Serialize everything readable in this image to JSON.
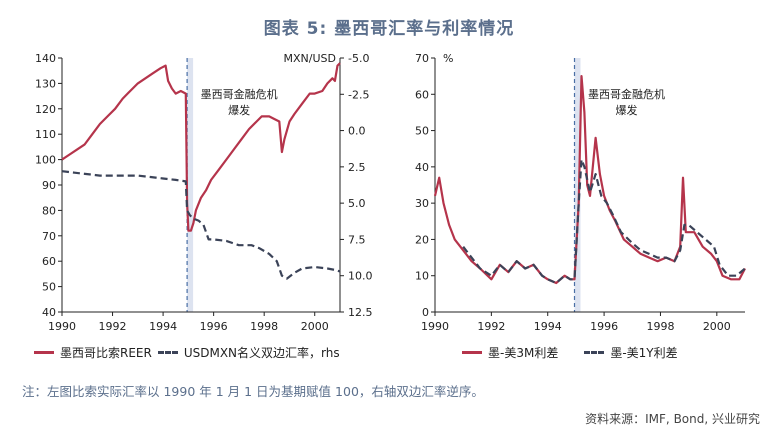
{
  "title": "图表 5: 墨西哥汇率与利率情况",
  "note": "注：左图比索实际汇率以 1990 年 1 月 1 日为基期赋值 100，右轴双边汇率逆序。",
  "source": "资料来源：IMF, Bond, 兴业研究",
  "colors": {
    "red": "#b5344b",
    "navy": "#3b4358",
    "shade": "#dde3f0",
    "vline": "#4a6fa5"
  },
  "chart_data": [
    {
      "type": "line",
      "annotation": "墨西哥金融危机\n爆发",
      "xlim": [
        1990,
        2001
      ],
      "xticks": [
        "1990",
        "1992",
        "1994",
        "1996",
        "1998",
        "2000"
      ],
      "ylim": [
        40,
        140
      ],
      "yticks": [
        "40",
        "50",
        "60",
        "70",
        "80",
        "90",
        "100",
        "110",
        "120",
        "130",
        "140"
      ],
      "y2label": "MXN/USD",
      "y2lim": [
        12.5,
        -5.0
      ],
      "y2ticks": [
        "-5.0",
        "-2.5",
        "0.0",
        "2.5",
        "5.0",
        "7.5",
        "10.0",
        "12.5"
      ],
      "event_x": 1994.95,
      "series": [
        {
          "name": "墨西哥比索REER",
          "axis": "left",
          "style": "solid",
          "x": [
            1990.0,
            1990.3,
            1990.6,
            1990.9,
            1991.2,
            1991.5,
            1991.8,
            1992.1,
            1992.4,
            1992.7,
            1993.0,
            1993.3,
            1993.6,
            1993.9,
            1994.1,
            1994.2,
            1994.35,
            1994.5,
            1994.7,
            1994.9,
            1994.95,
            1995.0,
            1995.1,
            1995.2,
            1995.3,
            1995.5,
            1995.7,
            1995.9,
            1996.2,
            1996.5,
            1996.8,
            1997.1,
            1997.4,
            1997.7,
            1997.9,
            1998.2,
            1998.4,
            1998.6,
            1998.7,
            1998.8,
            1999.0,
            1999.2,
            1999.5,
            1999.8,
            2000.0,
            2000.3,
            2000.5,
            2000.7,
            2000.8,
            2000.9,
            2001.0
          ],
          "values": [
            100,
            102,
            104,
            106,
            110,
            114,
            117,
            120,
            124,
            127,
            130,
            132,
            134,
            136,
            137,
            131,
            128,
            126,
            127,
            126,
            83,
            72,
            72,
            75,
            80,
            85,
            88,
            92,
            96,
            100,
            104,
            108,
            112,
            115,
            117,
            117,
            116,
            115,
            103,
            108,
            115,
            118,
            122,
            126,
            126,
            127,
            130,
            132,
            131,
            137,
            138
          ]
        },
        {
          "name": "USDMXN名义双边汇率，rhs",
          "axis": "right",
          "style": "dashed",
          "x": [
            1990.0,
            1990.5,
            1991.0,
            1991.5,
            1992.0,
            1992.5,
            1993.0,
            1993.5,
            1994.0,
            1994.5,
            1994.9,
            1994.95,
            1995.05,
            1995.15,
            1995.25,
            1995.4,
            1995.6,
            1995.8,
            1996.0,
            1996.5,
            1997.0,
            1997.5,
            1997.8,
            1998.2,
            1998.5,
            1998.7,
            1998.9,
            1999.2,
            1999.5,
            2000.0,
            2000.5,
            2000.8,
            2001.0
          ],
          "values": [
            2.8,
            2.9,
            3.0,
            3.1,
            3.1,
            3.1,
            3.1,
            3.2,
            3.3,
            3.4,
            3.5,
            5.5,
            5.8,
            6.0,
            6.1,
            6.2,
            6.5,
            7.5,
            7.5,
            7.6,
            7.9,
            7.9,
            8.1,
            8.5,
            9.0,
            10.0,
            10.2,
            9.8,
            9.5,
            9.4,
            9.5,
            9.6,
            9.7
          ]
        }
      ]
    },
    {
      "type": "line",
      "annotation": "墨西哥金融危机\n爆发",
      "xlim": [
        1990,
        2001
      ],
      "xticks": [
        "1990",
        "1992",
        "1994",
        "1996",
        "1998",
        "2000"
      ],
      "ylabel": "%",
      "ylim": [
        0,
        70
      ],
      "yticks": [
        "0",
        "10",
        "20",
        "30",
        "40",
        "50",
        "60",
        "70"
      ],
      "event_x": 1994.95,
      "series": [
        {
          "name": "墨-美3M利差",
          "style": "solid",
          "x": [
            1990.0,
            1990.15,
            1990.3,
            1990.5,
            1990.7,
            1991.0,
            1991.3,
            1991.6,
            1992.0,
            1992.3,
            1992.6,
            1992.9,
            1993.2,
            1993.5,
            1993.8,
            1994.0,
            1994.3,
            1994.6,
            1994.8,
            1994.95,
            1995.1,
            1995.2,
            1995.3,
            1995.4,
            1995.5,
            1995.7,
            1995.85,
            1996.0,
            1996.2,
            1996.4,
            1996.7,
            1997.0,
            1997.3,
            1997.6,
            1997.9,
            1998.2,
            1998.5,
            1998.7,
            1998.8,
            1998.9,
            1999.2,
            1999.5,
            1999.8,
            2000.0,
            2000.2,
            2000.5,
            2000.8,
            2001.0
          ],
          "values": [
            32,
            37,
            30,
            24,
            20,
            17,
            14,
            12,
            9,
            13,
            11,
            14,
            12,
            13,
            10,
            9,
            8,
            10,
            9,
            9,
            30,
            65,
            55,
            35,
            32,
            48,
            38,
            32,
            28,
            25,
            20,
            18,
            16,
            15,
            14,
            15,
            14,
            18,
            37,
            22,
            22,
            18,
            16,
            14,
            10,
            9,
            9,
            12
          ]
        },
        {
          "name": "墨-美1Y利差",
          "style": "dashed",
          "x": [
            1991.0,
            1991.3,
            1991.6,
            1992.0,
            1992.3,
            1992.6,
            1992.9,
            1993.2,
            1993.5,
            1993.8,
            1994.0,
            1994.3,
            1994.6,
            1994.8,
            1994.95,
            1995.1,
            1995.2,
            1995.3,
            1995.5,
            1995.7,
            1995.9,
            1996.1,
            1996.3,
            1996.6,
            1997.0,
            1997.3,
            1997.6,
            1997.9,
            1998.2,
            1998.5,
            1998.7,
            1998.85,
            1999.0,
            1999.3,
            1999.6,
            1999.9,
            2000.1,
            2000.4,
            2000.7,
            2001.0
          ],
          "values": [
            18,
            15,
            12,
            10,
            13,
            11,
            14,
            12,
            13,
            10,
            9,
            8,
            10,
            9,
            9,
            30,
            42,
            40,
            33,
            38,
            32,
            30,
            27,
            22,
            19,
            17,
            16,
            15,
            15,
            14,
            17,
            24,
            24,
            22,
            20,
            18,
            13,
            10,
            10,
            12
          ]
        }
      ]
    }
  ]
}
